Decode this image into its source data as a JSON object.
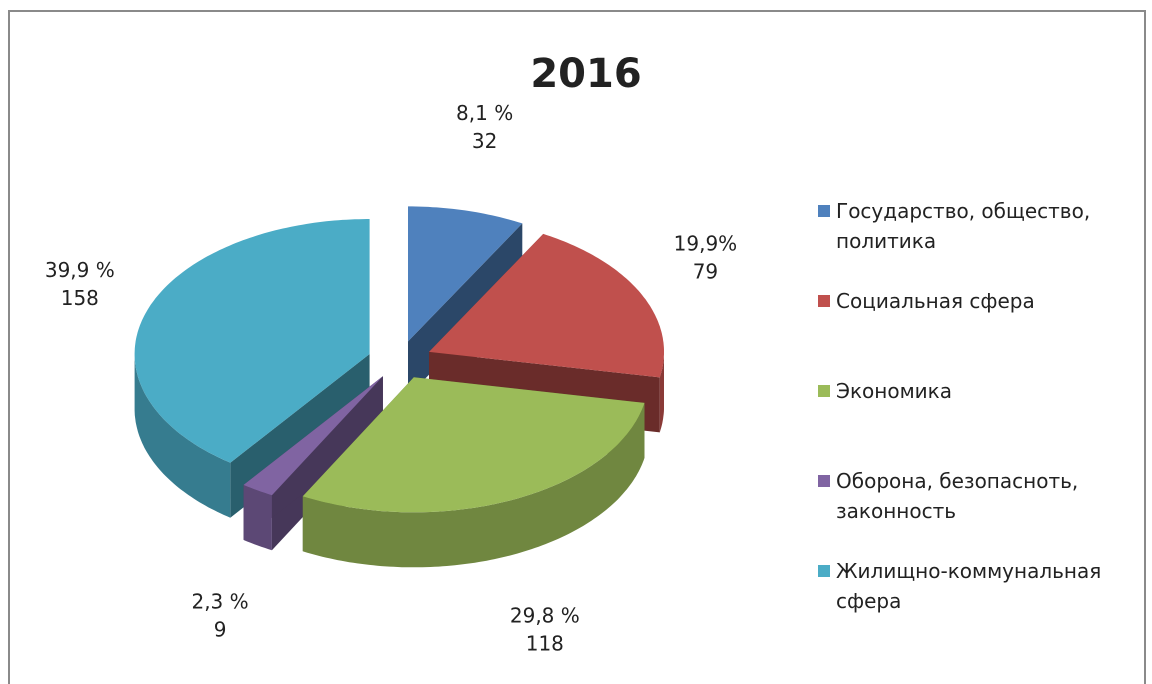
{
  "chart_data": {
    "type": "pie3d",
    "title": "2016",
    "categories": [
      "Государство, общество, политика",
      "Социальная сфера",
      "Экономика",
      "Оборона, безопасноть, законность",
      "Жилищно-коммунальная сфера"
    ],
    "values": [
      32,
      79,
      118,
      9,
      158
    ],
    "percents": [
      8.1,
      19.9,
      29.8,
      2.3,
      39.9
    ],
    "percent_labels": [
      "8,1 %",
      "19,9%",
      "29,8 %",
      "2,3 %",
      "39,9  %"
    ],
    "colors": [
      "#4f81bd",
      "#c0504d",
      "#9bbb59",
      "#8064a2",
      "#4bacc6"
    ],
    "legend": "right"
  }
}
